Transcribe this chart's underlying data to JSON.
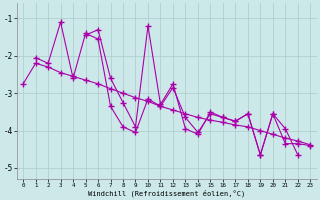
{
  "xlabel": "Windchill (Refroidissement éolien,°C)",
  "background_color": "#cce8e8",
  "grid_color": "#aacccc",
  "line_color": "#aa00aa",
  "xlim": [
    -0.5,
    23.5
  ],
  "ylim": [
    -5.3,
    -0.6
  ],
  "yticks": [
    -5,
    -4,
    -3,
    -2,
    -1
  ],
  "xticks": [
    0,
    1,
    2,
    3,
    4,
    5,
    6,
    7,
    8,
    9,
    10,
    11,
    12,
    13,
    14,
    15,
    16,
    17,
    18,
    19,
    20,
    21,
    22,
    23
  ],
  "series": [
    [
      null,
      -2.05,
      -2.2,
      -1.1,
      -2.6,
      -1.4,
      -1.55,
      -3.35,
      -3.9,
      -4.05,
      -3.15,
      -3.35,
      -2.85,
      -3.65,
      -4.05,
      -3.55,
      -3.65,
      -3.75,
      -3.55,
      -4.65,
      -3.55,
      -3.95,
      -4.65,
      null
    ],
    [
      null,
      null,
      null,
      null,
      null,
      -1.45,
      -1.3,
      -2.6,
      -3.25,
      -3.9,
      -1.2,
      -3.3,
      -2.75,
      -3.95,
      -4.1,
      -3.5,
      -3.65,
      -3.75,
      -3.55,
      -4.65,
      -3.55,
      -4.35,
      -4.35,
      -4.4
    ],
    [
      -2.75,
      -2.2,
      -2.3,
      -2.45,
      -2.55,
      -2.65,
      -2.75,
      -2.88,
      -3.0,
      -3.12,
      -3.22,
      -3.35,
      -3.45,
      -3.55,
      -3.65,
      -3.72,
      -3.78,
      -3.85,
      -3.9,
      -4.0,
      -4.1,
      -4.2,
      -4.28,
      -4.38
    ]
  ]
}
